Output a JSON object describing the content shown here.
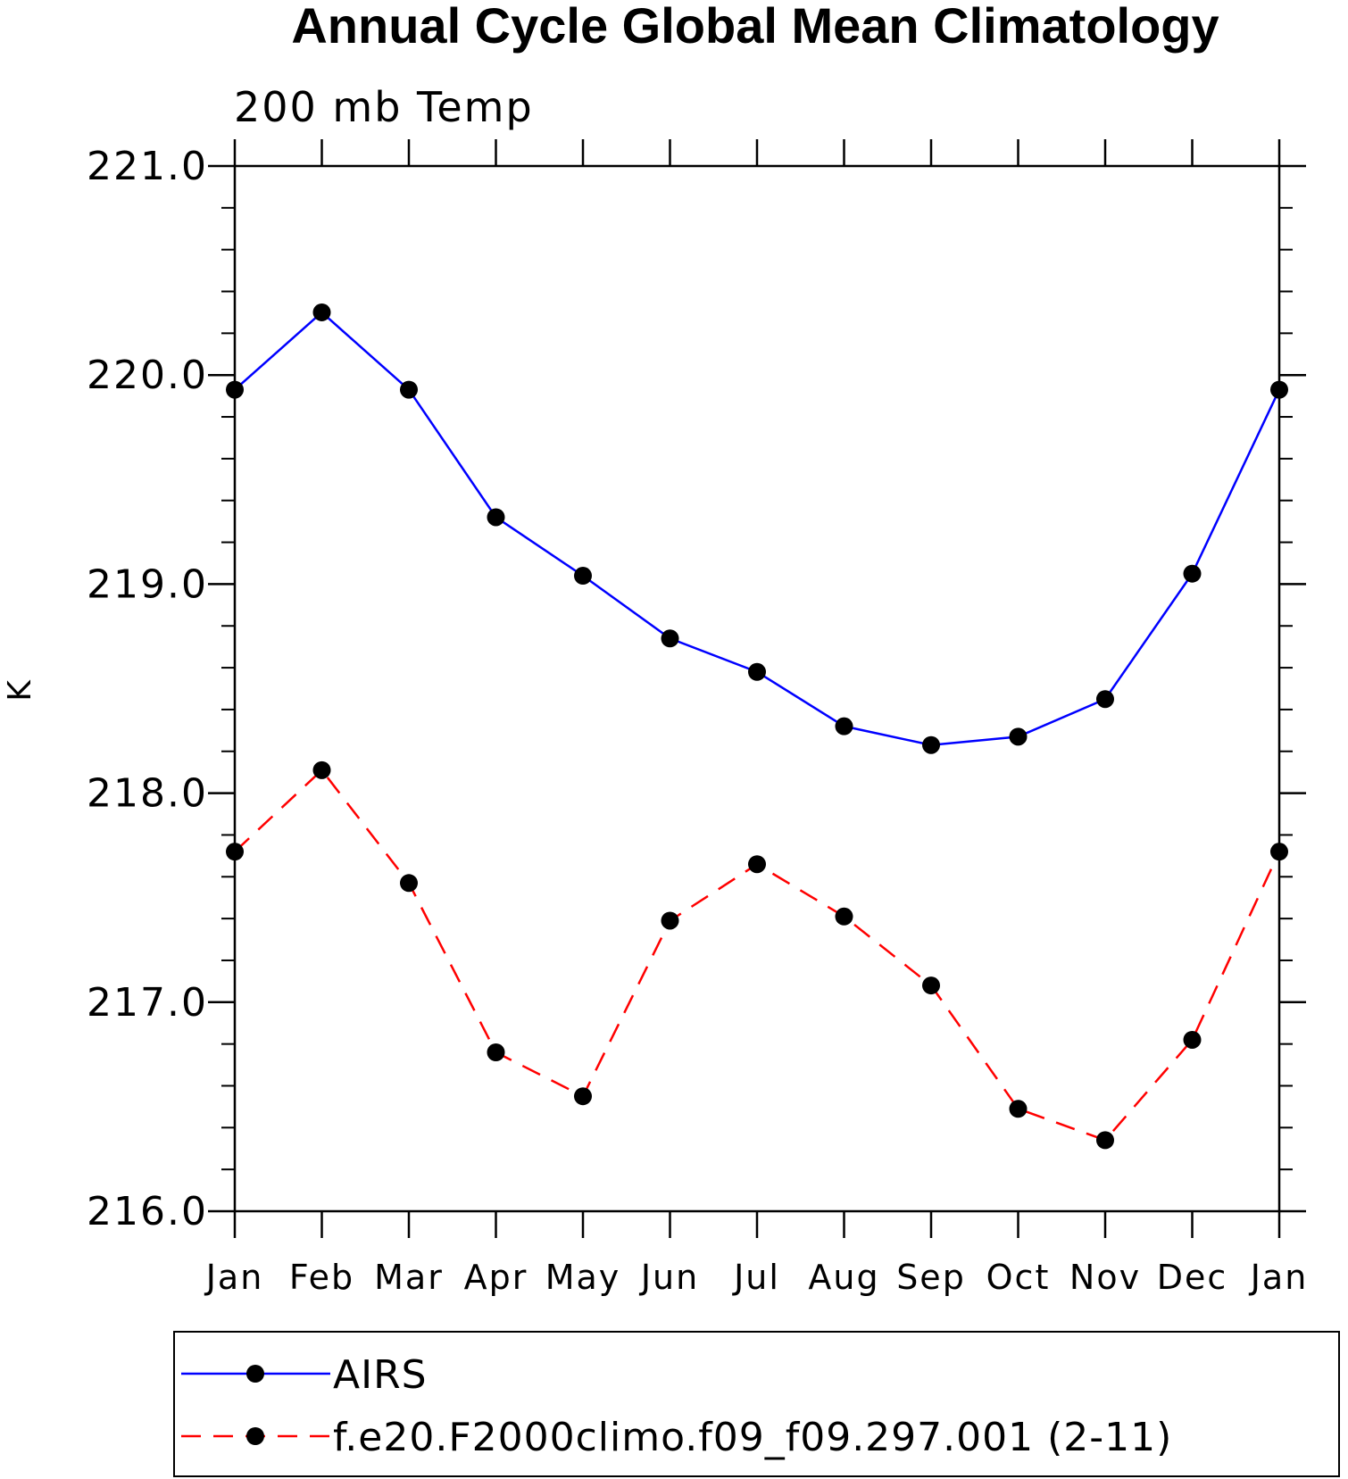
{
  "chart_data": {
    "type": "line",
    "title": "Annual Cycle Global Mean Climatology",
    "subtitle": "200 mb Temp",
    "xlabel": "",
    "ylabel": "K",
    "categories": [
      "Jan",
      "Feb",
      "Mar",
      "Apr",
      "May",
      "Jun",
      "Jul",
      "Aug",
      "Sep",
      "Oct",
      "Nov",
      "Dec",
      "Jan"
    ],
    "ylim": [
      216.0,
      221.0
    ],
    "yticks": [
      "216.0",
      "217.0",
      "218.0",
      "219.0",
      "220.0",
      "221.0"
    ],
    "grid": false,
    "legend_position": "bottom",
    "series": [
      {
        "name": "AIRS",
        "color": "#0000ff",
        "dash": "solid",
        "values": [
          219.93,
          220.3,
          219.93,
          219.32,
          219.04,
          218.74,
          218.58,
          218.32,
          218.23,
          218.27,
          218.45,
          219.05,
          219.93
        ]
      },
      {
        "name": "f.e20.F2000climo.f09_f09.297.001 (2-11)",
        "color": "#ff0000",
        "dash": "dashed",
        "values": [
          217.72,
          218.11,
          217.57,
          216.76,
          216.55,
          217.39,
          217.66,
          217.41,
          217.08,
          216.49,
          216.34,
          216.82,
          217.72
        ]
      }
    ]
  }
}
